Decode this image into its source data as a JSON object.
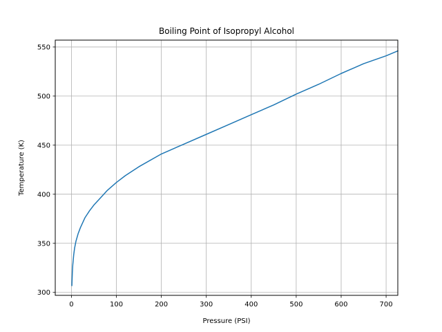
{
  "chart_data": {
    "type": "line",
    "title": "Boiling Point of Isopropyl Alcohol",
    "xlabel": "Pressure (PSI)",
    "ylabel": "Temperature (K)",
    "xlim": [
      -36,
      726
    ],
    "ylim": [
      297,
      557
    ],
    "x_ticks": [
      0,
      100,
      200,
      300,
      400,
      500,
      600,
      700
    ],
    "y_ticks": [
      300,
      350,
      400,
      450,
      500,
      550
    ],
    "grid": true,
    "series": [
      {
        "color": "#1f77b4",
        "x": [
          1,
          2,
          3,
          5,
          7,
          10,
          15,
          20,
          30,
          40,
          50,
          60,
          80,
          100,
          120,
          150,
          200,
          250,
          300,
          350,
          400,
          450,
          500,
          550,
          600,
          650,
          700,
          726
        ],
        "y": [
          307,
          320,
          328,
          338,
          345,
          352,
          360,
          366,
          376,
          383,
          389,
          394,
          404,
          412,
          419,
          428,
          441,
          451,
          461,
          471,
          481,
          491,
          502,
          512,
          523,
          533,
          541,
          546
        ]
      }
    ]
  }
}
